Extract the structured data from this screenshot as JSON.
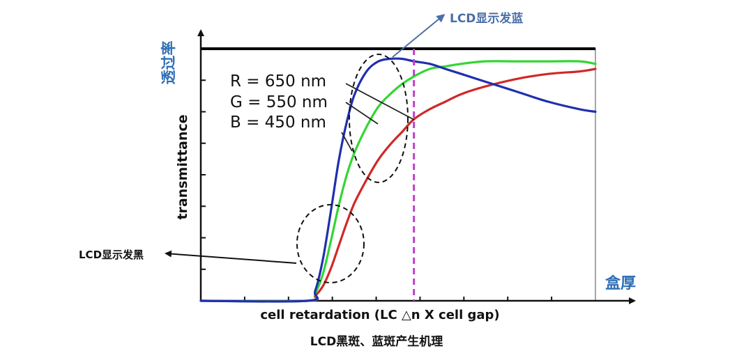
{
  "caption": "LCD黑斑、蓝斑产生机理",
  "annotations": {
    "blue_note": "LCD显示发蓝",
    "black_note": "LCD显示发黑"
  },
  "colors": {
    "blue_note": "#4a6ea8",
    "axis_label_cn": "#2f6fb6",
    "red": "#d02828",
    "green": "#33d633",
    "blue": "#1f2fb0",
    "marker": "#c040c8"
  },
  "chart_data": {
    "type": "line",
    "title": "",
    "ylabel": "transmittance",
    "ylabel_cn": "透过率",
    "xlabel": "cell retardation (LC △n X cell gap)",
    "xlabel_cn": "盒厚",
    "xlim": [
      0,
      1
    ],
    "ylim": [
      0,
      1
    ],
    "marker_x": 0.54,
    "legend_placement": "top-left",
    "series": [
      {
        "name": "R = 650 nm",
        "color": "#d02828",
        "x": [
          0.0,
          0.27,
          0.29,
          0.31,
          0.33,
          0.35,
          0.37,
          0.39,
          0.42,
          0.45,
          0.48,
          0.51,
          0.54,
          0.58,
          0.62,
          0.66,
          0.72,
          0.8,
          0.88,
          0.96,
          1.0
        ],
        "y": [
          0.0,
          0.0,
          0.02,
          0.06,
          0.13,
          0.22,
          0.31,
          0.39,
          0.48,
          0.56,
          0.62,
          0.67,
          0.72,
          0.76,
          0.79,
          0.82,
          0.85,
          0.88,
          0.9,
          0.91,
          0.92
        ]
      },
      {
        "name": "G = 550 nm",
        "color": "#33d633",
        "x": [
          0.0,
          0.27,
          0.29,
          0.31,
          0.33,
          0.35,
          0.37,
          0.39,
          0.42,
          0.45,
          0.48,
          0.51,
          0.54,
          0.58,
          0.62,
          0.66,
          0.72,
          0.8,
          0.88,
          0.96,
          1.0
        ],
        "y": [
          0.0,
          0.0,
          0.03,
          0.11,
          0.24,
          0.38,
          0.5,
          0.59,
          0.69,
          0.77,
          0.82,
          0.86,
          0.89,
          0.92,
          0.93,
          0.94,
          0.95,
          0.95,
          0.95,
          0.95,
          0.94
        ]
      },
      {
        "name": "B = 450 nm",
        "color": "#1f2fb0",
        "x": [
          0.0,
          0.27,
          0.29,
          0.31,
          0.33,
          0.35,
          0.37,
          0.39,
          0.42,
          0.45,
          0.48,
          0.51,
          0.54,
          0.58,
          0.62,
          0.66,
          0.72,
          0.8,
          0.88,
          0.96,
          1.0
        ],
        "y": [
          0.0,
          0.0,
          0.04,
          0.17,
          0.36,
          0.56,
          0.71,
          0.82,
          0.91,
          0.95,
          0.96,
          0.96,
          0.95,
          0.94,
          0.92,
          0.9,
          0.87,
          0.83,
          0.79,
          0.76,
          0.75
        ]
      }
    ]
  }
}
